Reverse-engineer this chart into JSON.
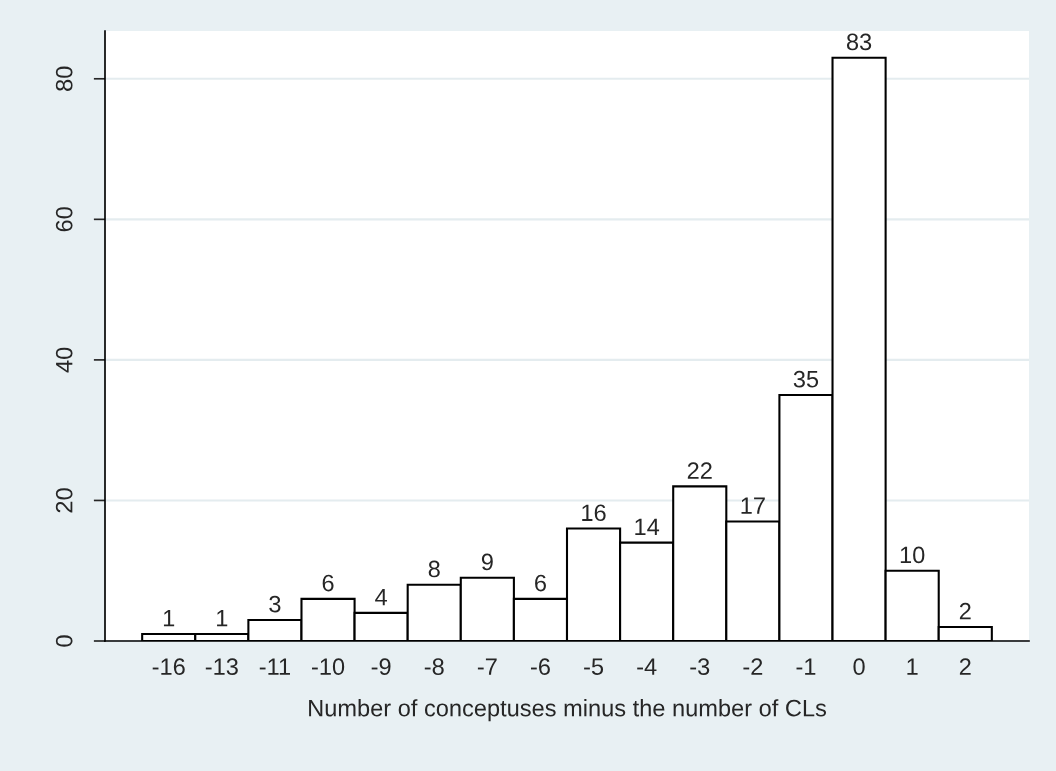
{
  "chart_data": {
    "type": "bar",
    "xlabel": "Number of conceptuses minus the number of CLs",
    "categories": [
      "-16",
      "-13",
      "-11",
      "-10",
      "-9",
      "-8",
      "-7",
      "-6",
      "-5",
      "-4",
      "-3",
      "-2",
      "-1",
      "0",
      "1",
      "2"
    ],
    "values": [
      1,
      1,
      3,
      6,
      4,
      8,
      9,
      6,
      16,
      14,
      22,
      17,
      35,
      83,
      10,
      2
    ],
    "color": "#ffffff",
    "ylim": [
      0,
      86.8
    ],
    "yticks": [
      0,
      20,
      40,
      60,
      80
    ],
    "grid": "y",
    "data_labels": true
  }
}
